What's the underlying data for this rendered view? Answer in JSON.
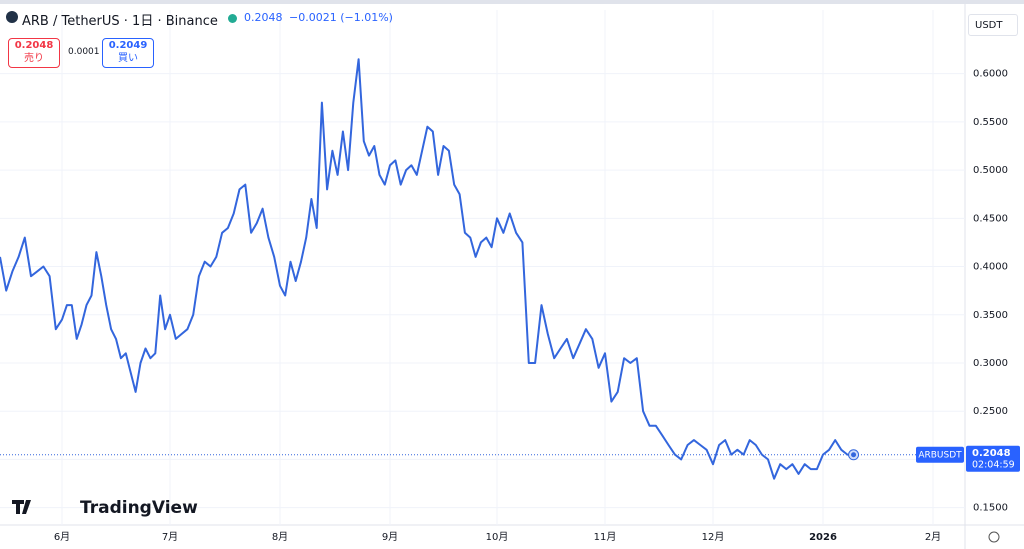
{
  "header": {
    "symbol": "ARB / TetherUS · 1日 · Binance",
    "price": "0.2048",
    "change": "−0.0021 (−1.01%)",
    "sell_price": "0.2048",
    "sell_label": "売り",
    "spread": "0.0001",
    "buy_price": "0.2049",
    "buy_label": "買い",
    "currency": "USDT",
    "logo": "TradingView"
  },
  "chart_data": {
    "type": "line",
    "series_name": "ARBUSDT",
    "countdown": "02:04:59",
    "color": "#3366dd",
    "categories": [
      null,
      null,
      null,
      null,
      null,
      null,
      null,
      null,
      null,
      null,
      "6月",
      null,
      null,
      null,
      null,
      null,
      null,
      null,
      null,
      null,
      null,
      null,
      null,
      null,
      null,
      null,
      null,
      null,
      null,
      null,
      null,
      null,
      "7月",
      null,
      null,
      null,
      null,
      null,
      null,
      null,
      null,
      null,
      null,
      null,
      null,
      null,
      null,
      null,
      null,
      null,
      null,
      "8月",
      null,
      null,
      null,
      null,
      null,
      null,
      null,
      null,
      null,
      null,
      null,
      null,
      null,
      null,
      null,
      null,
      null,
      null,
      null,
      null,
      "9月",
      null,
      null,
      null,
      null,
      null,
      null,
      null,
      null,
      null,
      null,
      null,
      null,
      null,
      null,
      null,
      null,
      null,
      null,
      null,
      "10月",
      null,
      null,
      null,
      null,
      null,
      null,
      null,
      null,
      null,
      null,
      null,
      null,
      null,
      null,
      null,
      null,
      "11月",
      null,
      null,
      null,
      null,
      null,
      null,
      null,
      null,
      null,
      null,
      null,
      null,
      null,
      null,
      null,
      null,
      "12月",
      null,
      null,
      null,
      null,
      null,
      null,
      null,
      null,
      null,
      null,
      null,
      null,
      null,
      null,
      null,
      null,
      null,
      "2026",
      null,
      null,
      null,
      null,
      null,
      null,
      null,
      null,
      null,
      null,
      null,
      null,
      null,
      null,
      null,
      null,
      null,
      "2月"
    ],
    "values": [
      0.41,
      0.375,
      0.395,
      0.41,
      0.43,
      0.39,
      0.395,
      0.4,
      0.39,
      0.335,
      0.345,
      0.36,
      0.36,
      0.325,
      0.34,
      0.36,
      0.37,
      0.415,
      0.39,
      0.36,
      0.335,
      0.325,
      0.305,
      0.31,
      0.29,
      0.27,
      0.3,
      0.315,
      0.305,
      0.31,
      0.37,
      0.335,
      0.35,
      0.325,
      0.33,
      0.335,
      0.35,
      0.39,
      0.405,
      0.4,
      0.41,
      0.435,
      0.44,
      0.455,
      0.48,
      0.485,
      0.435,
      0.445,
      0.46,
      0.43,
      0.41,
      0.38,
      0.37,
      0.405,
      0.385,
      0.405,
      0.43,
      0.47,
      0.44,
      0.57,
      0.48,
      0.52,
      0.495,
      0.54,
      0.5,
      0.57,
      0.615,
      0.53,
      0.515,
      0.525,
      0.495,
      0.485,
      0.505,
      0.51,
      0.485,
      0.5,
      0.505,
      0.495,
      0.52,
      0.545,
      0.54,
      0.495,
      0.525,
      0.52,
      0.485,
      0.475,
      0.435,
      0.43,
      0.41,
      0.425,
      0.43,
      0.42,
      0.45,
      0.435,
      0.455,
      0.435,
      0.425,
      0.3,
      0.3,
      0.36,
      0.33,
      0.305,
      0.315,
      0.325,
      0.305,
      0.32,
      0.335,
      0.325,
      0.295,
      0.31,
      0.26,
      0.27,
      0.305,
      0.3,
      0.305,
      0.25,
      0.235,
      0.235,
      0.225,
      0.215,
      0.205,
      0.2,
      0.215,
      0.22,
      0.215,
      0.21,
      0.195,
      0.215,
      0.22,
      0.205,
      0.21,
      0.205,
      0.22,
      0.215,
      0.205,
      0.2,
      0.18,
      0.195,
      0.19,
      0.195,
      0.185,
      0.195,
      0.19,
      0.19,
      0.205,
      0.21,
      0.22,
      0.21,
      0.205,
      0.2048,
      null,
      null,
      null,
      null,
      null,
      null,
      null,
      null,
      null,
      null,
      null,
      null,
      null
    ],
    "ylim": [
      0.132,
      0.666
    ],
    "yticks": [
      {
        "value": 0.15,
        "label": "0.1500"
      },
      {
        "value": 0.2,
        "label": "0.2000"
      },
      {
        "value": 0.25,
        "label": "0.2500"
      },
      {
        "value": 0.3,
        "label": "0.3000"
      },
      {
        "value": 0.35,
        "label": "0.3500"
      },
      {
        "value": 0.4,
        "label": "0.4000"
      },
      {
        "value": 0.45,
        "label": "0.4500"
      },
      {
        "value": 0.5,
        "label": "0.5000"
      },
      {
        "value": 0.55,
        "label": "0.5500"
      },
      {
        "value": 0.6,
        "label": "0.6000"
      }
    ],
    "grid": true
  }
}
